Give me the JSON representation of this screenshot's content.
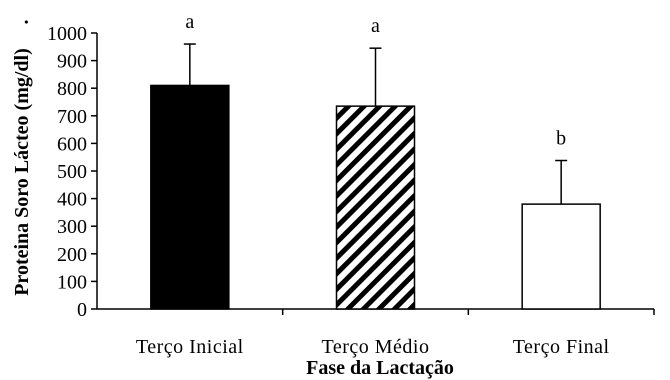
{
  "chart_data": {
    "type": "bar",
    "title": "",
    "xlabel": "Fase da Lactação",
    "ylabel": "Proteina Soro Lácteo (mg/dl)",
    "ylabel_suffix": ".",
    "ylim": [
      0,
      1000
    ],
    "yticks": [
      0,
      100,
      200,
      300,
      400,
      500,
      600,
      700,
      800,
      900,
      1000
    ],
    "categories": [
      "Terço Inicial",
      "Terço Médio",
      "Terço Final"
    ],
    "values": [
      810,
      735,
      380
    ],
    "error_upper": [
      960,
      945,
      538
    ],
    "significance_labels": [
      "a",
      "a",
      "b"
    ],
    "bar_fills": [
      "solid-black",
      "diagonal-hatch",
      "white"
    ],
    "grid": false,
    "legend": "none"
  }
}
